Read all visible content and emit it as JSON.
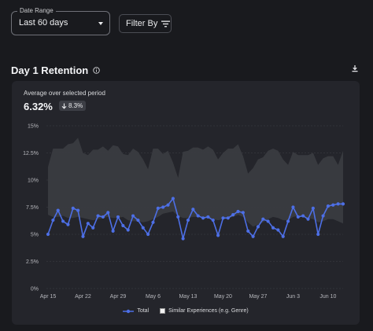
{
  "filters": {
    "date_range_label": "Date Range",
    "date_range_value": "Last 60 days",
    "filter_by_label": "Filter By"
  },
  "section": {
    "title": "Day 1 Retention"
  },
  "card": {
    "subtitle": "Average over selected period",
    "average_value": "6.32%",
    "delta_value": "8.3%",
    "delta_direction": "down"
  },
  "colors": {
    "total_line": "#4d6fe6",
    "similar_band": "#3a3b40",
    "grid": "#3f4046"
  },
  "chart_data": {
    "type": "line",
    "title": "",
    "xlabel": "",
    "ylabel": "",
    "ylim": [
      0,
      15
    ],
    "yticks": [
      "0%",
      "2.5%",
      "5%",
      "7.5%",
      "10%",
      "12.5%",
      "15%"
    ],
    "ytick_values": [
      0,
      2.5,
      5,
      7.5,
      10,
      12.5,
      15
    ],
    "x": [
      "Apr 15",
      "Apr 16",
      "Apr 17",
      "Apr 18",
      "Apr 19",
      "Apr 20",
      "Apr 21",
      "Apr 22",
      "Apr 23",
      "Apr 24",
      "Apr 25",
      "Apr 26",
      "Apr 27",
      "Apr 28",
      "Apr 29",
      "Apr 30",
      "May 1",
      "May 2",
      "May 3",
      "May 4",
      "May 5",
      "May 6",
      "May 7",
      "May 8",
      "May 9",
      "May 10",
      "May 11",
      "May 12",
      "May 13",
      "May 14",
      "May 15",
      "May 16",
      "May 17",
      "May 18",
      "May 19",
      "May 20",
      "May 21",
      "May 22",
      "May 23",
      "May 24",
      "May 25",
      "May 26",
      "May 27",
      "May 28",
      "May 29",
      "May 30",
      "May 31",
      "Jun 1",
      "Jun 2",
      "Jun 3",
      "Jun 4",
      "Jun 5",
      "Jun 6",
      "Jun 7",
      "Jun 8",
      "Jun 9",
      "Jun 10",
      "Jun 11",
      "Jun 12",
      "Jun 13"
    ],
    "xtick_labels": [
      "Apr 15",
      "Apr 22",
      "Apr 29",
      "May 6",
      "May 13",
      "May 20",
      "May 27",
      "Jun 3",
      "Jun 10"
    ],
    "xtick_indices": [
      0,
      7,
      14,
      21,
      28,
      35,
      42,
      49,
      56
    ],
    "grid": true,
    "legend_position": "bottom",
    "series": [
      {
        "name": "Total",
        "kind": "line",
        "values": [
          5.0,
          6.3,
          7.2,
          6.2,
          5.9,
          7.4,
          7.2,
          4.8,
          6.0,
          5.6,
          6.7,
          6.6,
          7.0,
          5.3,
          6.6,
          5.8,
          5.4,
          6.7,
          6.3,
          5.6,
          5.0,
          6.1,
          7.4,
          7.5,
          7.7,
          8.3,
          6.6,
          4.6,
          6.3,
          7.3,
          6.7,
          6.5,
          6.6,
          6.3,
          4.9,
          6.5,
          6.5,
          6.8,
          7.1,
          7.0,
          5.3,
          4.8,
          5.7,
          6.4,
          6.2,
          5.6,
          5.4,
          4.8,
          6.2,
          7.5,
          6.6,
          6.7,
          6.4,
          7.4,
          5.0,
          6.7,
          7.6,
          7.7,
          7.8,
          7.8
        ]
      },
      {
        "name": "Similar Experiences (e.g. Genre)",
        "kind": "band",
        "upper": [
          11.2,
          12.9,
          12.9,
          12.9,
          13.3,
          13.4,
          13.9,
          12.5,
          12.3,
          12.8,
          12.8,
          13.1,
          12.7,
          13.2,
          13.1,
          12.4,
          12.3,
          12.9,
          12.6,
          11.9,
          11.0,
          12.9,
          12.9,
          12.4,
          12.7,
          11.6,
          10.2,
          12.6,
          12.7,
          13.0,
          13.0,
          12.8,
          13.1,
          12.8,
          11.9,
          12.5,
          12.9,
          12.9,
          13.3,
          12.2,
          10.6,
          11.1,
          11.9,
          12.1,
          12.7,
          12.9,
          12.7,
          11.9,
          11.4,
          12.6,
          12.3,
          12.3,
          12.3,
          12.5,
          11.4,
          12.0,
          12.2,
          12.2,
          11.4,
          12.7
        ],
        "lower": [
          6.8,
          6.6,
          6.6,
          6.7,
          6.5,
          6.5,
          6.6,
          6.5,
          6.4,
          6.3,
          6.4,
          6.5,
          6.6,
          6.5,
          6.5,
          6.6,
          6.3,
          6.2,
          6.2,
          6.1,
          6.2,
          6.4,
          6.6,
          6.9,
          7.0,
          7.1,
          6.7,
          6.5,
          6.5,
          6.6,
          6.6,
          6.5,
          6.5,
          6.4,
          6.3,
          6.4,
          6.5,
          6.6,
          6.8,
          6.6,
          6.1,
          5.7,
          5.9,
          6.1,
          6.4,
          6.6,
          6.5,
          6.3,
          6.3,
          6.6,
          6.7,
          6.6,
          6.5,
          6.4,
          6.1,
          6.2,
          6.4,
          6.4,
          6.2,
          6.0
        ]
      }
    ]
  }
}
